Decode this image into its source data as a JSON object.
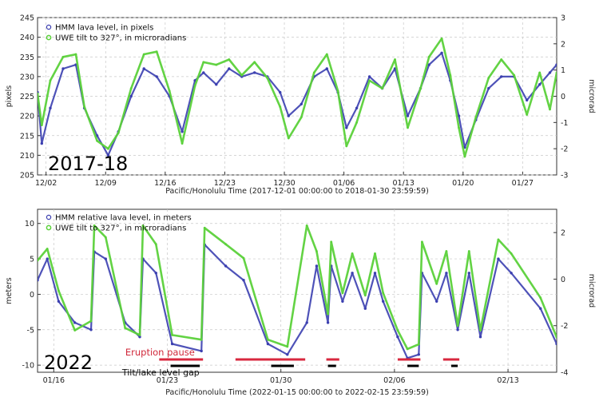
{
  "colors": {
    "hmm": "#3b3fb0",
    "uwe": "#5bd13a",
    "pause": "#d8283f",
    "gap": "#000000",
    "grid": "#c8c8c8"
  },
  "chart_data": [
    {
      "type": "scatter",
      "panel_label": "2017-18",
      "xlabel": "Pacific/Honolulu Time (2017-12-01 00:00:00 to 2018-01-30 23:59:59)",
      "ylabel_left": "pixels",
      "ylabel_right": "microrad",
      "x_range_days": [
        0,
        61
      ],
      "ylim": [
        205,
        245
      ],
      "y2lim": [
        -3,
        3
      ],
      "yticks": [
        "205",
        "210",
        "215",
        "220",
        "225",
        "230",
        "235",
        "240",
        "245"
      ],
      "y2ticks": [
        "-3",
        "-2",
        "-1",
        "0",
        "1",
        "2",
        "3"
      ],
      "x_ticks": [
        {
          "label": "12/02",
          "day": 1
        },
        {
          "label": "12/09",
          "day": 8
        },
        {
          "label": "12/16",
          "day": 15
        },
        {
          "label": "12/23",
          "day": 22
        },
        {
          "label": "12/30",
          "day": 29
        },
        {
          "label": "01/06",
          "day": 36
        },
        {
          "label": "01/13",
          "day": 43
        },
        {
          "label": "01/20",
          "day": 50
        },
        {
          "label": "01/27",
          "day": 57
        }
      ],
      "grid": true,
      "legend": [
        "HMM lava level, in pixels",
        "UWE tilt to 327°, in microradians"
      ],
      "legend_position": "top-left",
      "series": [
        {
          "name": "HMM lava level, in pixels",
          "axis": "left",
          "x": [
            0,
            0.5,
            1.5,
            3,
            4.5,
            5.5,
            7,
            8.3,
            9.5,
            11,
            12.5,
            14,
            15.5,
            17,
            18.5,
            19.5,
            21,
            22.5,
            24,
            25.5,
            27,
            28.5,
            29.5,
            31,
            32.5,
            34,
            35.3,
            36.3,
            37.5,
            39,
            40.5,
            42,
            43.5,
            45,
            46,
            47.5,
            48.5,
            49.5,
            50.2,
            51.5,
            53,
            54.5,
            56,
            57.5,
            59,
            60.2,
            61
          ],
          "y": [
            226,
            213,
            222,
            232,
            233,
            222,
            215,
            210,
            216,
            225,
            232,
            230,
            225,
            216,
            229,
            231,
            228,
            232,
            230,
            231,
            230,
            226,
            220,
            223,
            230,
            232,
            226,
            217,
            222,
            230,
            227,
            232,
            220,
            227,
            233,
            236,
            229,
            220,
            212,
            219,
            227,
            230,
            230,
            224,
            228,
            231,
            233
          ]
        },
        {
          "name": "UWE tilt to 327°, in microradians",
          "axis": "right",
          "x": [
            0,
            0.5,
            1.5,
            3,
            4.5,
            5.5,
            7,
            8.3,
            9.5,
            11,
            12.5,
            14,
            15.5,
            17,
            18.5,
            19.5,
            21,
            22.5,
            24,
            25.5,
            27,
            28.5,
            29.5,
            31,
            32.5,
            34,
            35.3,
            36.3,
            37.5,
            39,
            40.5,
            42,
            43.5,
            45,
            46,
            47.5,
            48.5,
            49.5,
            50.2,
            51.5,
            53,
            54.5,
            56,
            57.5,
            59,
            60.2,
            61
          ],
          "y": [
            0.1,
            -1.1,
            0.6,
            1.5,
            1.6,
            -0.4,
            -1.7,
            -2.0,
            -1.4,
            0.3,
            1.6,
            1.7,
            0.2,
            -1.8,
            0.4,
            1.3,
            1.2,
            1.4,
            0.8,
            1.3,
            0.7,
            -0.4,
            -1.6,
            -0.8,
            0.9,
            1.6,
            0.2,
            -1.9,
            -1.0,
            0.6,
            0.3,
            1.4,
            -1.2,
            0.3,
            1.5,
            2.2,
            0.8,
            -1.2,
            -2.3,
            -0.8,
            0.7,
            1.4,
            0.8,
            -0.7,
            0.9,
            -0.5,
            0.9
          ]
        }
      ]
    },
    {
      "type": "scatter",
      "panel_label": "2022",
      "xlabel": "Pacific/Honolulu Time (2022-01-15 00:00:00 to 2022-02-15 23:59:59)",
      "ylabel_left": "meters",
      "ylabel_right": "microrad",
      "x_range_days": [
        0,
        32
      ],
      "ylim": [
        -11,
        12
      ],
      "y2lim": [
        -4,
        3
      ],
      "yticks": [
        "-10",
        "-5",
        "0",
        "5",
        "10"
      ],
      "y2ticks": [
        "-4",
        "-2",
        "0",
        "2"
      ],
      "x_ticks": [
        {
          "label": "01/16",
          "day": 1
        },
        {
          "label": "01/23",
          "day": 8
        },
        {
          "label": "01/30",
          "day": 15
        },
        {
          "label": "02/06",
          "day": 22
        },
        {
          "label": "02/13",
          "day": 29
        }
      ],
      "grid": true,
      "legend": [
        "HMM relative lava level, in meters",
        "UWE tilt to 327°, in microradians"
      ],
      "legend_position": "top-left",
      "annotations": [
        "Eruption pause",
        "Tilt/lake level gap"
      ],
      "eruption_pause_days": [
        [
          7.5,
          10.2
        ],
        [
          12.2,
          16.5
        ],
        [
          17.8,
          18.6
        ],
        [
          22.2,
          23.6
        ],
        [
          25,
          26
        ]
      ],
      "tilt_lake_gap_days": [
        [
          8.2,
          10
        ],
        [
          14.4,
          15.8
        ],
        [
          17.9,
          18.4
        ],
        [
          22.8,
          23.5
        ],
        [
          25.5,
          25.9
        ]
      ],
      "series": [
        {
          "name": "HMM relative lava level, in meters",
          "axis": "left",
          "x": [
            0,
            0.6,
            1.3,
            2.3,
            3.3,
            3.5,
            4.2,
            5.4,
            6.3,
            6.5,
            7.3,
            8.3,
            10.1,
            10.3,
            11.6,
            12.7,
            14.2,
            15.4,
            16.6,
            17.2,
            17.9,
            18.1,
            18.8,
            19.4,
            20.2,
            20.8,
            21.3,
            22.2,
            22.8,
            23.5,
            23.7,
            24.6,
            25.2,
            25.9,
            26.6,
            27.3,
            28.4,
            29.2,
            31,
            32
          ],
          "y": [
            2,
            5,
            -1,
            -4,
            -5,
            6,
            5,
            -4,
            -6,
            5,
            3,
            -7,
            -8,
            7,
            4,
            2,
            -7,
            -8.5,
            -4,
            4,
            -4,
            4,
            -1,
            3,
            -2,
            3,
            -1,
            -6,
            -9,
            -8.5,
            3,
            -1,
            3,
            -5,
            3,
            -6,
            5,
            3,
            -2,
            -7
          ]
        },
        {
          "name": "UWE tilt to 327°, in microradians",
          "axis": "right",
          "x": [
            0,
            0.6,
            1.3,
            2.3,
            3.3,
            3.5,
            4.2,
            5.4,
            6.3,
            6.5,
            7.3,
            8.3,
            10.1,
            10.3,
            11.6,
            12.7,
            14.2,
            15.4,
            16.6,
            17.2,
            17.9,
            18.1,
            18.8,
            19.4,
            20.2,
            20.8,
            21.3,
            22.2,
            22.8,
            23.5,
            23.7,
            24.6,
            25.2,
            25.9,
            26.6,
            27.3,
            28.4,
            29.2,
            31,
            32
          ],
          "y": [
            0.8,
            1.3,
            -0.5,
            -2.2,
            -1.8,
            2.3,
            1.8,
            -2.1,
            -2.4,
            2.3,
            1.5,
            -2.4,
            -2.6,
            2.2,
            1.5,
            0.9,
            -2.6,
            -2.9,
            2.3,
            1.2,
            -1.5,
            1.6,
            -0.6,
            1.1,
            -0.7,
            1.1,
            -0.6,
            -2.2,
            -3.0,
            -2.8,
            1.6,
            -0.2,
            1.2,
            -2.0,
            1.2,
            -2.2,
            1.7,
            1.1,
            -0.8,
            -2.5
          ]
        }
      ]
    }
  ]
}
